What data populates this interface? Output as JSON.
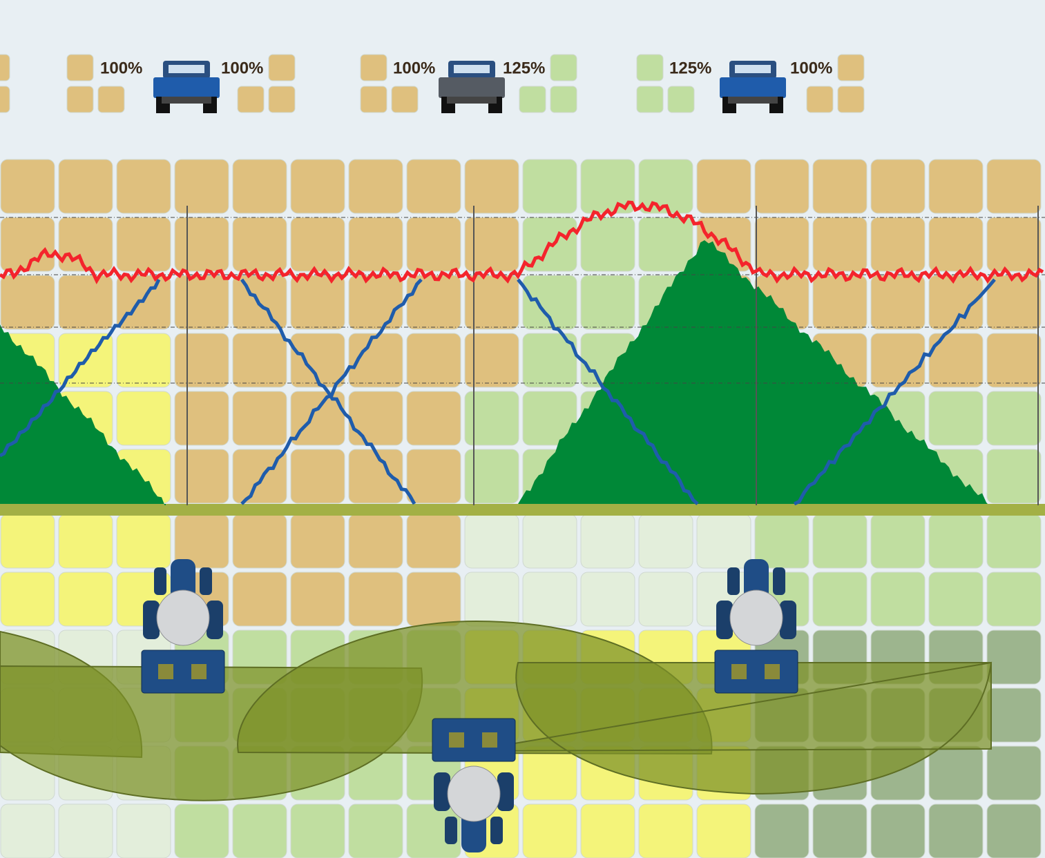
{
  "spreaders": [
    {
      "left_label": "100%",
      "right_label": "100%"
    },
    {
      "left_label": "100%",
      "right_label": "125%"
    },
    {
      "left_label": "125%",
      "right_label": "100%"
    }
  ]
}
